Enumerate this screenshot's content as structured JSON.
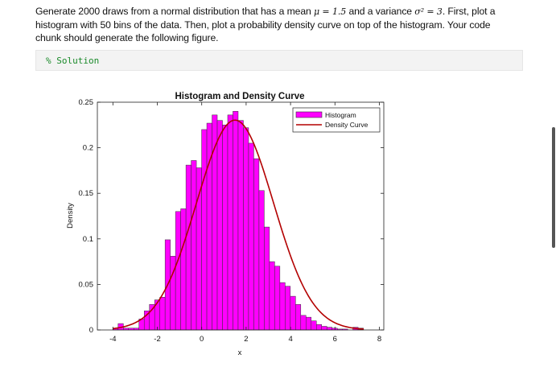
{
  "prompt": {
    "part1": "Generate 2000 draws from a normal distribution that has a mean",
    "mean_math": "μ = 1.5",
    "part2": "and a variance",
    "var_math": "σ² = 3",
    "part3": ". First, plot a histogram with 50 bins of the data. Then, plot a probability density curve on top of the histogram. Your code chunk should generate the following figure."
  },
  "code_cell": {
    "text": "% Solution"
  },
  "colors": {
    "bar_fill": "#ff00ff",
    "bar_edge": "#333333",
    "curve": "#b30000",
    "code_comment": "#1a8a2a"
  },
  "chart_data": {
    "type": "bar",
    "title": "Histogram and Density Curve",
    "xlabel": "x",
    "ylabel": "Density",
    "xlim": [
      -4.7,
      8.2
    ],
    "ylim": [
      0,
      0.25
    ],
    "xticks": [
      -4,
      -2,
      0,
      2,
      4,
      6,
      8
    ],
    "yticks": [
      0,
      0.05,
      0.1,
      0.15,
      0.2,
      0.25
    ],
    "ytick_labels": [
      "0",
      "0.05",
      "0.1",
      "0.15",
      "0.2",
      "0.25"
    ],
    "legend_position": "top-right",
    "series": [
      {
        "name": "Histogram",
        "kind": "histogram",
        "bin_start": -4.0,
        "bin_width": 0.235,
        "values": [
          0.002,
          0.007,
          0.002,
          0.002,
          0.002,
          0.012,
          0.021,
          0.028,
          0.033,
          0.036,
          0.099,
          0.081,
          0.13,
          0.133,
          0.181,
          0.186,
          0.178,
          0.22,
          0.227,
          0.236,
          0.23,
          0.225,
          0.236,
          0.24,
          0.23,
          0.222,
          0.205,
          0.188,
          0.153,
          0.113,
          0.075,
          0.07,
          0.052,
          0.048,
          0.037,
          0.028,
          0.016,
          0.014,
          0.01,
          0.006,
          0.004,
          0.003,
          0.002,
          0.001,
          0.001,
          0.0,
          0.003,
          0.002,
          0.0,
          0.0
        ]
      },
      {
        "name": "Density Curve",
        "kind": "normal_pdf",
        "mean": 1.5,
        "variance": 3
      }
    ]
  }
}
